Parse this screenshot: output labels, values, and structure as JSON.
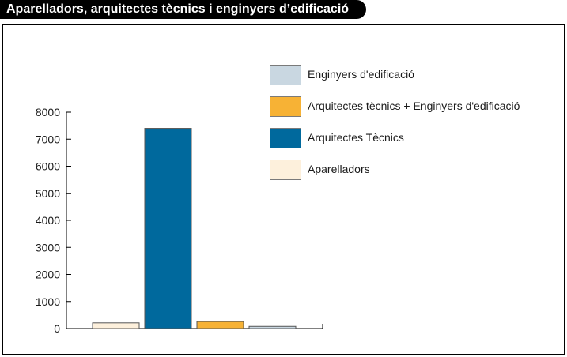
{
  "title": "Aparelladors, arquitectes tècnics i enginyers d’edificació",
  "legend": [
    {
      "label": "Enginyers d'edificació",
      "color": "#c9d7e1"
    },
    {
      "label": "Arquitectes tècnics + Enginyers d'edificació",
      "color": "#f7b235"
    },
    {
      "label": "Arquitectes Tècnics",
      "color": "#00699d"
    },
    {
      "label": "Aparelladors",
      "color": "#fdf0dc"
    }
  ],
  "chart_data": {
    "type": "bar",
    "categories": [
      "Aparelladors",
      "Arquitectes Tècnics",
      "Arquitectes tècnics + Enginyers d'edificació",
      "Enginyers d'edificació"
    ],
    "values": [
      210,
      7400,
      260,
      80
    ],
    "colors": [
      "#fdf0dc",
      "#00699d",
      "#f7b235",
      "#c9d7e1"
    ],
    "ylim": [
      0,
      8000
    ],
    "yticks": [
      "0",
      "1000",
      "2000",
      "3000",
      "4000",
      "5000",
      "6000",
      "7000",
      "8000"
    ],
    "title": "Aparelladors, arquitectes tècnics i enginyers d’edificació",
    "xlabel": "",
    "ylabel": "",
    "grid": false,
    "legend_position": "top-right"
  }
}
